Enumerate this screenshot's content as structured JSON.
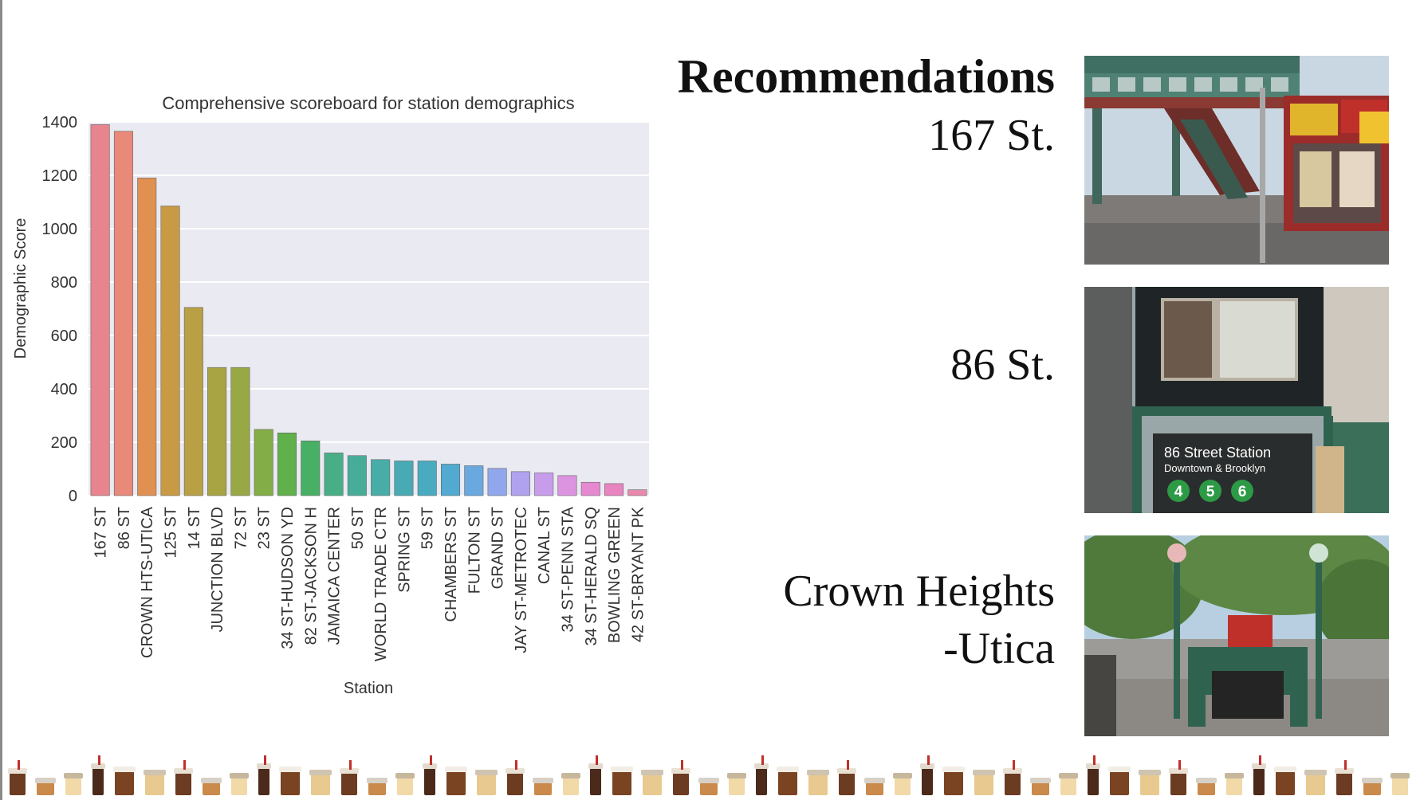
{
  "chart_data": {
    "type": "bar",
    "title": "Comprehensive scoreboard for station demographics",
    "xlabel": "Station",
    "ylabel": "Demographic Score",
    "ylim": [
      0,
      1400
    ],
    "yticks": [
      "0",
      "200",
      "400",
      "600",
      "800",
      "1000",
      "1200",
      "1400"
    ],
    "grid": true,
    "categories": [
      "167 ST",
      "86 ST",
      "CROWN HTS-UTICA",
      "125 ST",
      "14 ST",
      "JUNCTION BLVD",
      "72 ST",
      "23 ST",
      "34 ST-HUDSON YD",
      "82 ST-JACKSON H",
      "JAMAICA CENTER",
      "50 ST",
      "WORLD TRADE CTR",
      "SPRING ST",
      "59 ST",
      "CHAMBERS ST",
      "FULTON ST",
      "GRAND ST",
      "JAY ST-METROTEC",
      "CANAL ST",
      "34 ST-PENN STA",
      "34 ST-HERALD SQ",
      "BOWLING GREEN",
      "42 ST-BRYANT PK"
    ],
    "values": [
      1390,
      1365,
      1190,
      1085,
      705,
      480,
      480,
      248,
      235,
      205,
      160,
      150,
      135,
      130,
      130,
      118,
      112,
      102,
      90,
      85,
      75,
      50,
      45,
      22
    ],
    "colors": [
      "#e8848d",
      "#e8897a",
      "#e09051",
      "#c99a44",
      "#b9a045",
      "#a8a444",
      "#98a845",
      "#83ad47",
      "#60b04b",
      "#48b064",
      "#48ae86",
      "#48ad98",
      "#48aca7",
      "#48abb3",
      "#49abc0",
      "#52aad0",
      "#6aa8e0",
      "#92a7eb",
      "#b0a2ee",
      "#c79ceb",
      "#dc94e0",
      "#e689d0",
      "#e884c0",
      "#e888ad"
    ]
  },
  "heading": "Recommendations",
  "recommendations": [
    {
      "line1": "167 St.",
      "line2": "",
      "photo_icon": "elevated-station-photo"
    },
    {
      "line1": "86 St.",
      "line2": "",
      "photo_icon": "subway-entrance-sign-photo"
    },
    {
      "line1": "Crown Heights",
      "line2": "-Utica",
      "photo_icon": "subway-stairway-photo"
    }
  ],
  "photo2_sign": {
    "title": "86 Street Station",
    "subtitle": "Downtown & Brooklyn",
    "routes": [
      "4",
      "5",
      "6"
    ],
    "route_color": "#2d9a46"
  },
  "border": {
    "icon": "coffee-drink-icon"
  }
}
